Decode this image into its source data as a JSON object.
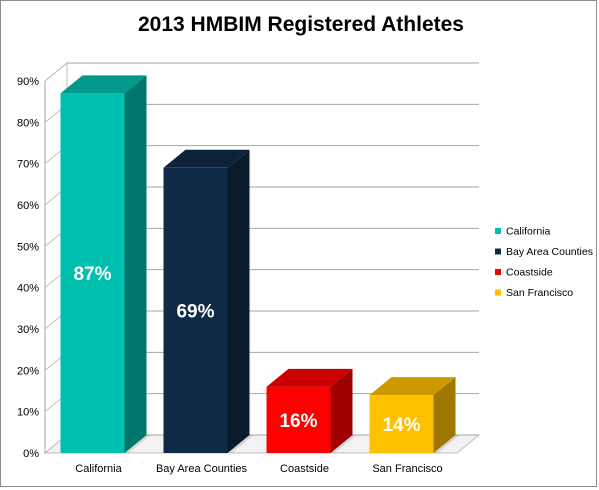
{
  "chart_data": {
    "type": "bar",
    "title": "2013 HMBIM Registered Athletes",
    "categories": [
      "California",
      "Bay Area Counties",
      "Coastside",
      "San Francisco"
    ],
    "values": [
      87,
      69,
      16,
      14
    ],
    "data_labels": [
      "87%",
      "69%",
      "16%",
      "14%"
    ],
    "colors": [
      "#00BFAE",
      "#0E2A47",
      "#FF0000",
      "#FFC000"
    ],
    "ylim": [
      0,
      90
    ],
    "yticks": [
      0,
      10,
      20,
      30,
      40,
      50,
      60,
      70,
      80,
      90
    ],
    "ytick_labels": [
      "0%",
      "10%",
      "20%",
      "30%",
      "40%",
      "50%",
      "60%",
      "70%",
      "80%",
      "90%"
    ],
    "xlabel": "",
    "ylabel": "",
    "grid": true,
    "style": "3d-column",
    "legend": {
      "position": "right",
      "entries": [
        "California",
        "Bay Area Counties",
        "Coastside",
        "San Francisco"
      ]
    }
  }
}
